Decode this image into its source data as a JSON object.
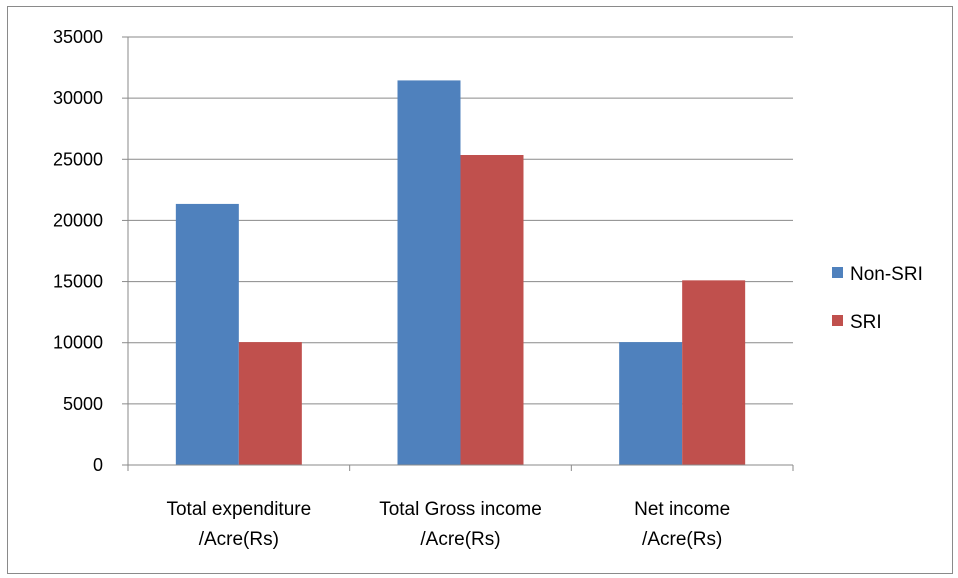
{
  "chart_data": {
    "type": "bar",
    "categories": [
      [
        "Total expenditure",
        "/Acre(Rs)"
      ],
      [
        "Total Gross income",
        "/Acre(Rs)"
      ],
      [
        "Net income",
        "/Acre(Rs)"
      ]
    ],
    "series": [
      {
        "name": "Non-SRI",
        "color": "#4f81bd",
        "values": [
          21350,
          31450,
          10050
        ]
      },
      {
        "name": "SRI",
        "color": "#c0504d",
        "values": [
          10050,
          25350,
          15100
        ]
      }
    ],
    "ylim": [
      0,
      35000
    ],
    "yticks": [
      "0",
      "5000",
      "10000",
      "15000",
      "20000",
      "25000",
      "30000",
      "35000"
    ],
    "grid": true,
    "legend": "right",
    "title": "",
    "xlabel": "",
    "ylabel": ""
  }
}
